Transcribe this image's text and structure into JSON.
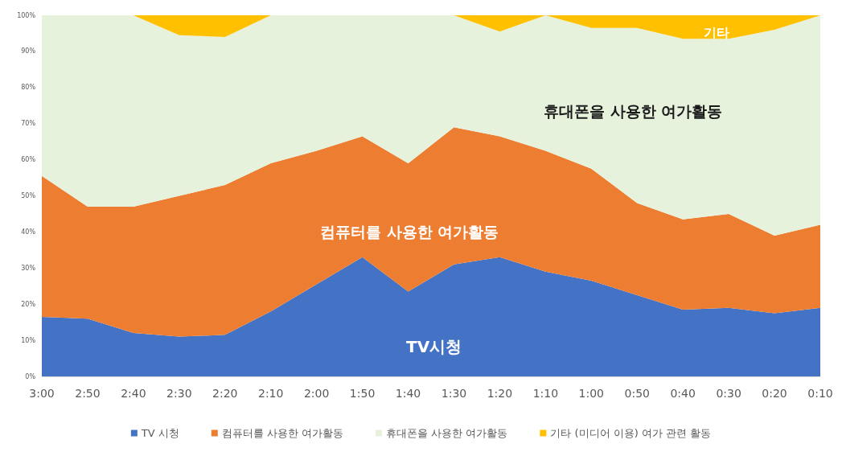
{
  "chart_data": {
    "type": "area",
    "stacked": true,
    "categories": [
      "3:00",
      "2:50",
      "2:40",
      "2:30",
      "2:20",
      "2:10",
      "2:00",
      "1:50",
      "1:40",
      "1:30",
      "1:20",
      "1:10",
      "1:00",
      "0:50",
      "0:40",
      "0:30",
      "0:20",
      "0:10"
    ],
    "series": [
      {
        "name": "TV 시청",
        "color": "#4472c4",
        "values": [
          16.5,
          16,
          12,
          11,
          11.5,
          18,
          25.5,
          33,
          23.5,
          31,
          33,
          29,
          26.5,
          22.5,
          18.5,
          19,
          17.5,
          19
        ]
      },
      {
        "name": "컴퓨터를 사용한 여가활동",
        "color": "#ed7d31",
        "values": [
          39,
          31,
          35,
          39,
          41.5,
          41,
          37,
          33.5,
          35.5,
          38,
          33.5,
          33.5,
          31,
          25.5,
          25,
          26,
          21.5,
          23
        ]
      },
      {
        "name": "휴대폰을 사용한 여가활동",
        "color": "#e6f2dc",
        "values": [
          44.5,
          53,
          53,
          44.5,
          41,
          41,
          37.5,
          33.5,
          41,
          31,
          29,
          37.5,
          39,
          48.5,
          50,
          48.5,
          57,
          58
        ]
      },
      {
        "name": "기타 (미디어 이용) 여가 관련 활동",
        "color": "#ffc000",
        "values": [
          0,
          0,
          0,
          5.5,
          6,
          0,
          0,
          0,
          0,
          0,
          4.5,
          0,
          3.5,
          3.5,
          6.5,
          6.5,
          4,
          0
        ]
      }
    ],
    "ylim": [
      0,
      100
    ],
    "yticks": [
      {
        "value": 0,
        "label": "0%"
      },
      {
        "value": 10,
        "label": "10%"
      },
      {
        "value": 20,
        "label": "20%"
      },
      {
        "value": 30,
        "label": "30%"
      },
      {
        "value": 40,
        "label": "40%"
      },
      {
        "value": 50,
        "label": "50%"
      },
      {
        "value": 60,
        "label": "60%"
      },
      {
        "value": 70,
        "label": "70%"
      },
      {
        "value": 80,
        "label": "80%"
      },
      {
        "value": 90,
        "label": "90%"
      },
      {
        "value": 100,
        "label": "100%"
      }
    ],
    "annotations": [
      "TV시청",
      "컴퓨터를 사용한 여가활동",
      "휴대폰을 사용한 여가활동",
      "기타"
    ],
    "grid": false,
    "legend": "bottom"
  }
}
